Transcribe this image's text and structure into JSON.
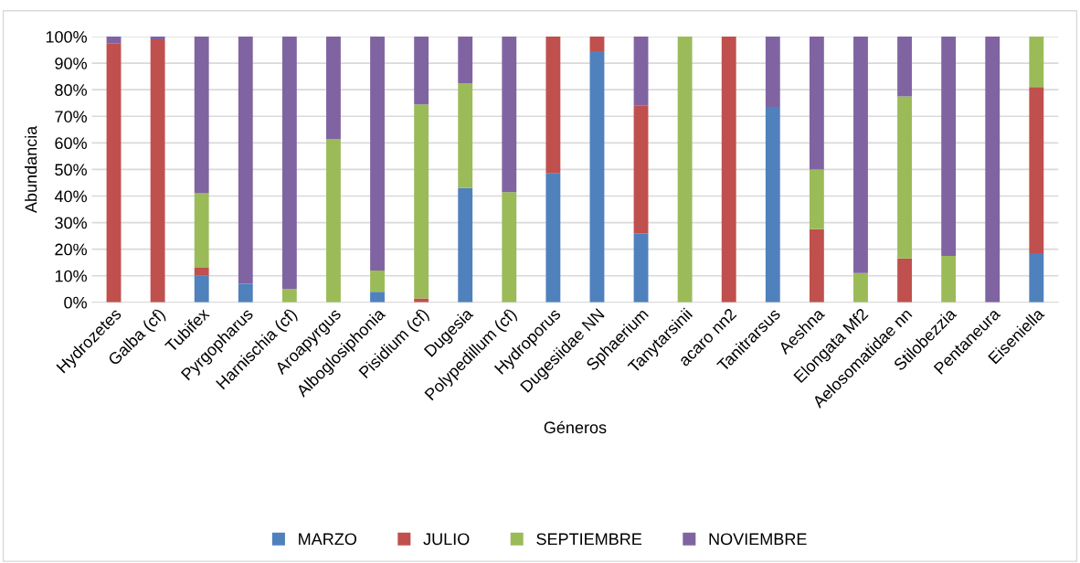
{
  "chart_data": {
    "type": "bar",
    "stacked": true,
    "xlabel": "Géneros",
    "ylabel": "Abundancia",
    "categories": [
      "Hydrozetes",
      "Galba (cf)",
      "Tubifex",
      "Pyrgopharus",
      "Harnischia (cf)",
      "Aroapyrgus",
      "Alboglosiphonia",
      "Pisidium (cf)",
      "Dugesia",
      "Polypedillum (cf)",
      "Hydroporus",
      "Dugesiidae NN",
      "Sphaerium",
      "Tanytarsinii",
      "acaro nn2",
      "Tanitrarsus",
      "Aeshna",
      "Elongata Mf2",
      "Aelosomatidae nn",
      "Stilobezzia",
      "Pentaneura",
      "Eiseniella"
    ],
    "series": [
      {
        "name": "MARZO",
        "color": "#4f81bd",
        "values": [
          0,
          0,
          10,
          7,
          0,
          0,
          4,
          0,
          43,
          0,
          48.5,
          94.5,
          26,
          0,
          0,
          73.5,
          0,
          0,
          0,
          0,
          0,
          18.5
        ]
      },
      {
        "name": "JULIO",
        "color": "#c0504d",
        "values": [
          97.5,
          99,
          3,
          0,
          0,
          0,
          0,
          1.5,
          0,
          0,
          51.5,
          5.5,
          48,
          0,
          100,
          0,
          27.5,
          0,
          16.5,
          0,
          0,
          62.5
        ]
      },
      {
        "name": "SEPTIEMBRE",
        "color": "#9bbb59",
        "values": [
          0,
          0,
          28,
          0,
          5,
          61.5,
          8,
          73,
          39.5,
          41.5,
          0,
          0,
          0,
          100,
          0,
          0,
          22.5,
          11,
          61,
          17.5,
          0,
          19
        ]
      },
      {
        "name": "NOVIEMBRE",
        "color": "#8064a2",
        "values": [
          2.5,
          1,
          59,
          93,
          95,
          38.5,
          88,
          25.5,
          17.5,
          58.5,
          0,
          0,
          26,
          0,
          0,
          26.5,
          50,
          89,
          22.5,
          82.5,
          100,
          0
        ]
      }
    ],
    "ylim": [
      0,
      100
    ],
    "yticks": [
      {
        "value": 0,
        "label": "0%"
      },
      {
        "value": 10,
        "label": "10%"
      },
      {
        "value": 20,
        "label": "20%"
      },
      {
        "value": 30,
        "label": "30%"
      },
      {
        "value": 40,
        "label": "40%"
      },
      {
        "value": 50,
        "label": "50%"
      },
      {
        "value": 60,
        "label": "60%"
      },
      {
        "value": 70,
        "label": "70%"
      },
      {
        "value": 80,
        "label": "80%"
      },
      {
        "value": 90,
        "label": "90%"
      },
      {
        "value": 100,
        "label": "100%"
      }
    ],
    "grid": "y",
    "legend": "bottom"
  }
}
